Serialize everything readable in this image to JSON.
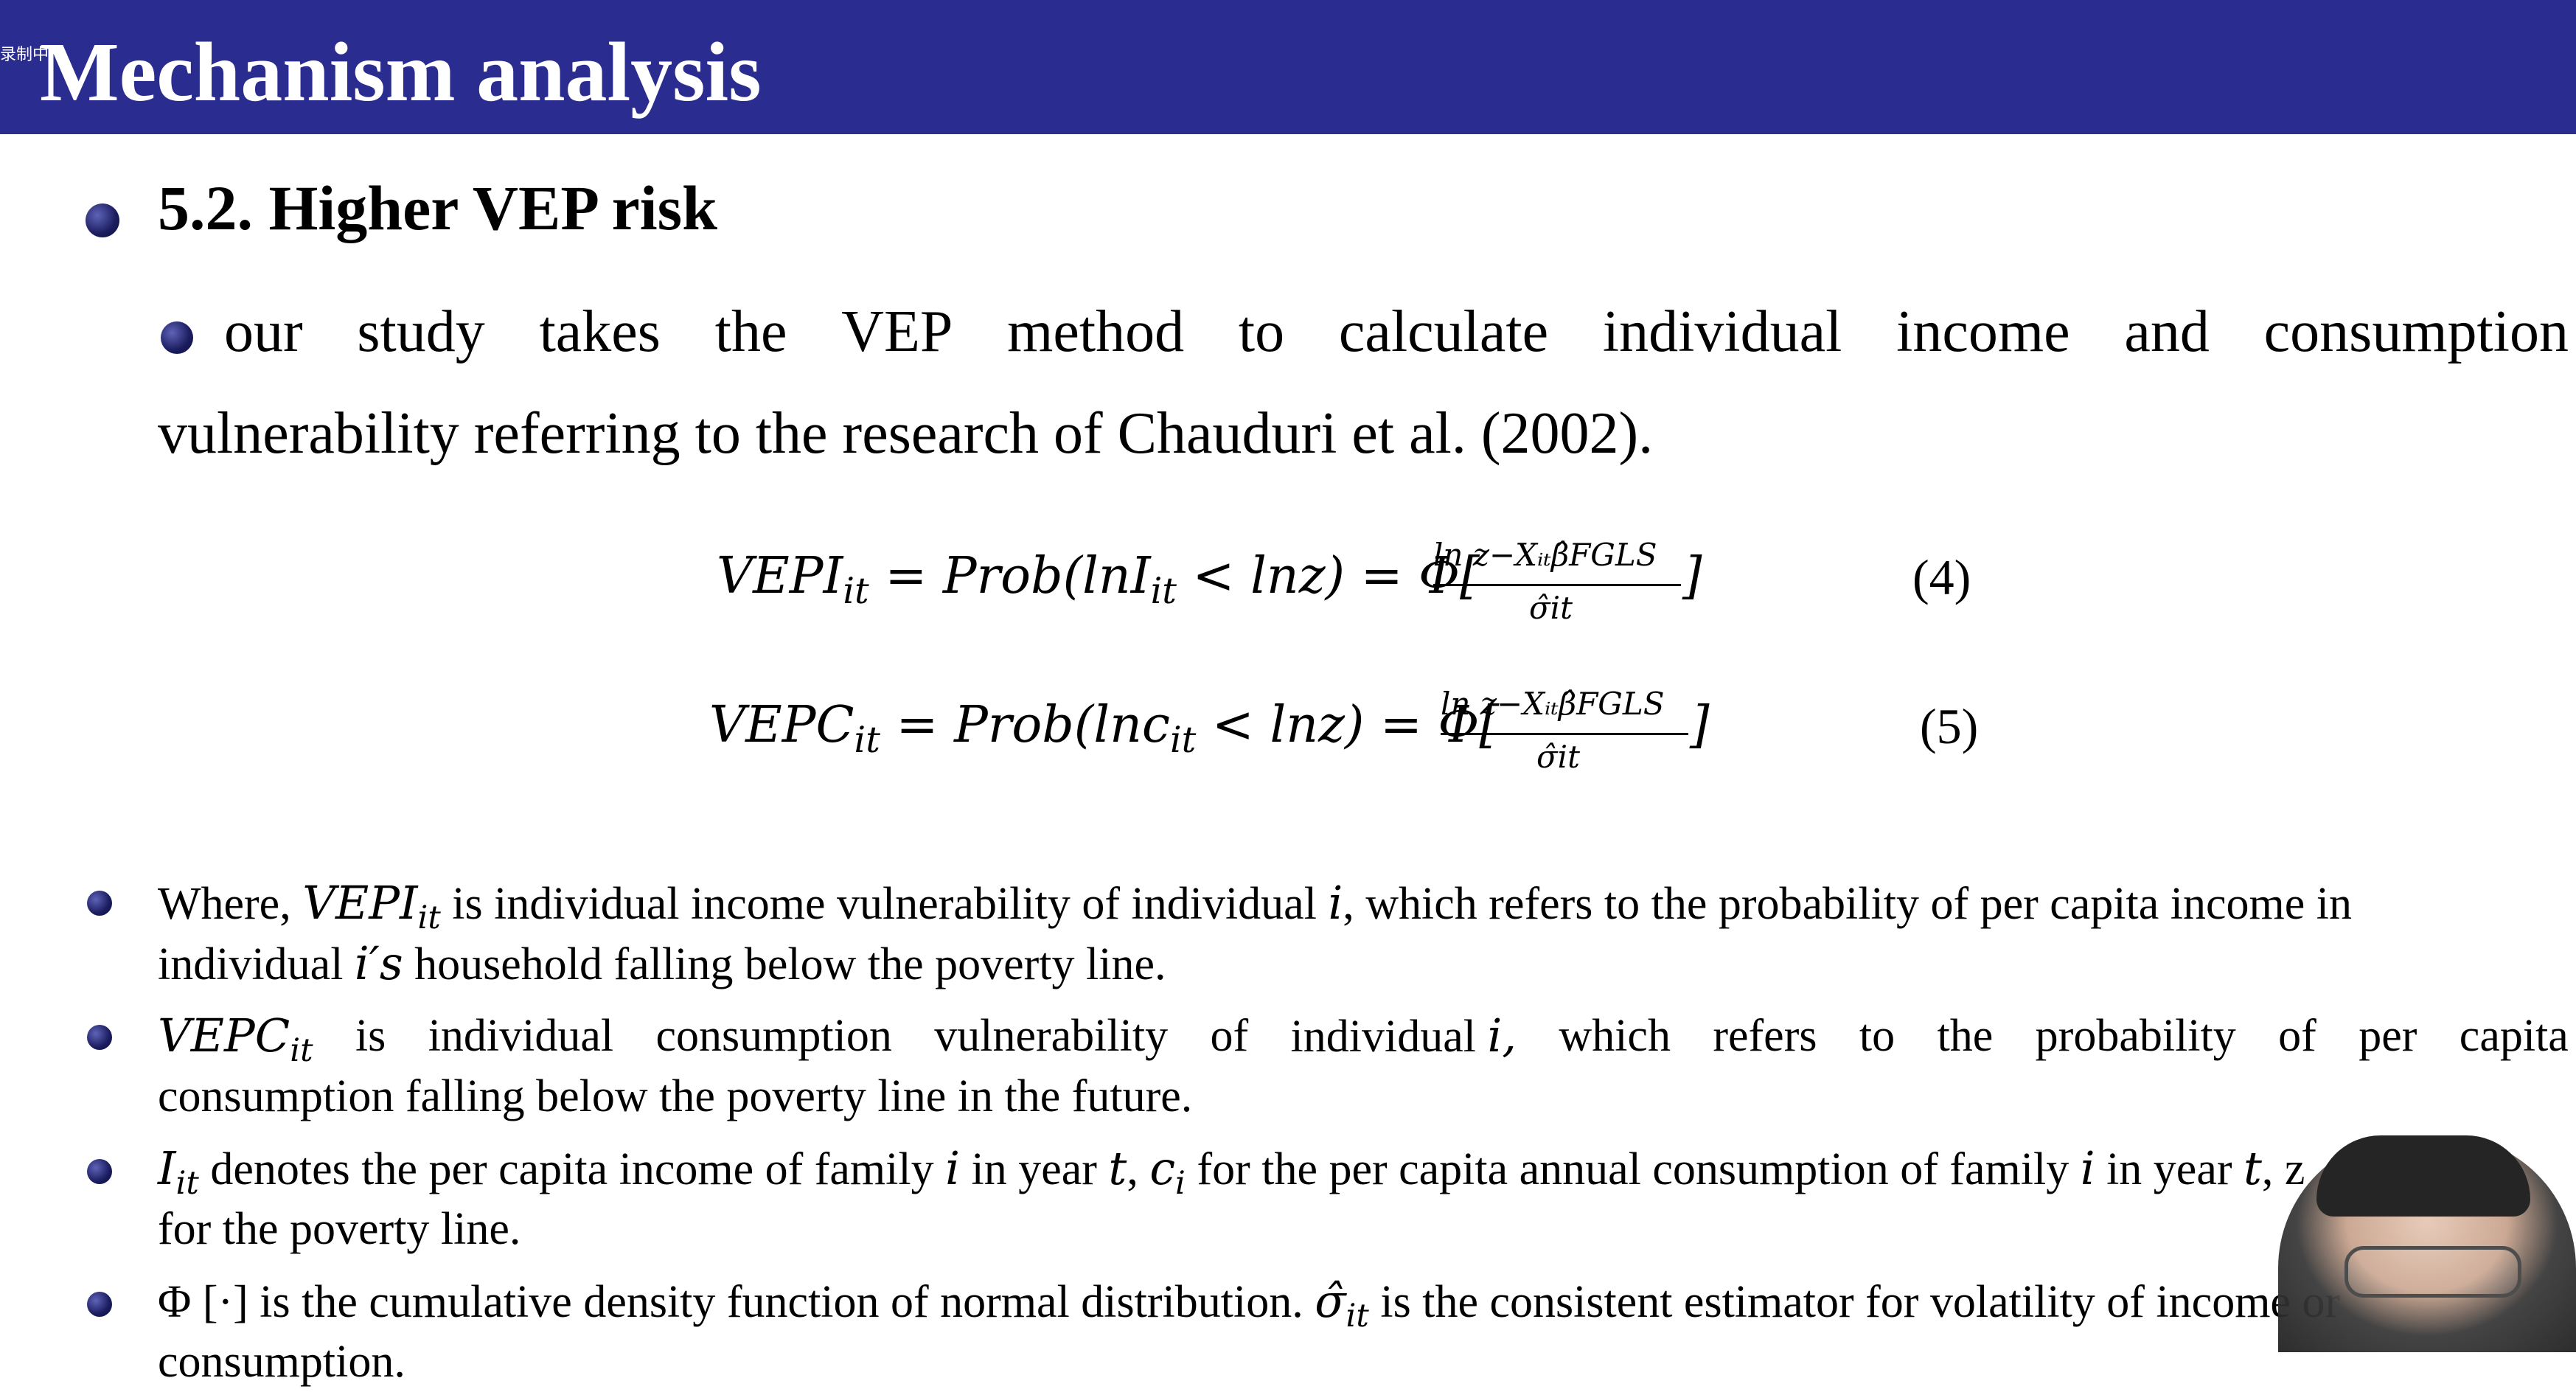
{
  "recording_indicator": "录制中",
  "slide": {
    "title": "Mechanism analysis",
    "section_heading": "5.2. Higher VEP risk",
    "intro_line1_words": [
      "our",
      "study",
      "takes",
      "the",
      "VEP",
      "method",
      "to",
      "calculate",
      "individual",
      "income",
      "and",
      "consumption"
    ],
    "intro_line2": "vulnerability referring to the research of Chauduri et al. (2002).",
    "equations": [
      {
        "lhs_main": "VEPI",
        "lhs_sub": "it",
        "middle_a": " = Prob(lnI",
        "middle_sub": "it",
        "middle_b": " < lnz) = Φ[",
        "numerator": "ln z−Xᵢₜβ̂FGLS",
        "denominator": "σ̂it",
        "close": "]",
        "number": "(4)"
      },
      {
        "lhs_main": "VEPC",
        "lhs_sub": "it",
        "middle_a": " = Prob(lnc",
        "middle_sub": "it",
        "middle_b": " < lnz) = Φ[",
        "numerator": "ln z−Xᵢₜβ̂FGLS",
        "denominator": "σ̂it",
        "close": "]",
        "number": "(5)"
      }
    ],
    "para1": {
      "a": "Where, ",
      "m1": "VEPI",
      "m1sub": "it",
      "b": " is individual income vulnerability of individual ",
      "m2": "i",
      "c": ", which refers to the probability of per capita income in",
      "line2_a": "individual ",
      "line2_m": "i′s",
      "line2_b": " household falling below the poverty line."
    },
    "para2": {
      "m1": "VEPC",
      "m1sub": "it",
      "words": [
        "is",
        "individual",
        "consumption",
        "vulnerability",
        "of",
        "individual"
      ],
      "m2": "i,",
      "words2": [
        "which",
        "refers",
        "to",
        "the",
        "probability",
        "of",
        "per",
        "capita"
      ],
      "line2": "consumption falling below the poverty line in the future."
    },
    "para3": {
      "m1": "I",
      "m1sub": "it",
      "a": " denotes the per capita income of family ",
      "m2": "i",
      "b": " in year ",
      "m3": "t",
      "c": ", ",
      "m4": "c",
      "m4sub": "i",
      "d": " for the per capita annual consumption of family ",
      "m5": "i",
      "e": " in year ",
      "m6": "t",
      "f": ", z",
      "line2": "for the poverty line."
    },
    "para4": {
      "a": "Φ [·] is the cumulative density function of normal distribution. ",
      "m1": "σ̂",
      "m1sub": "it",
      "b": " is the consistent estimator for volatility of income or",
      "line2": "consumption."
    }
  }
}
